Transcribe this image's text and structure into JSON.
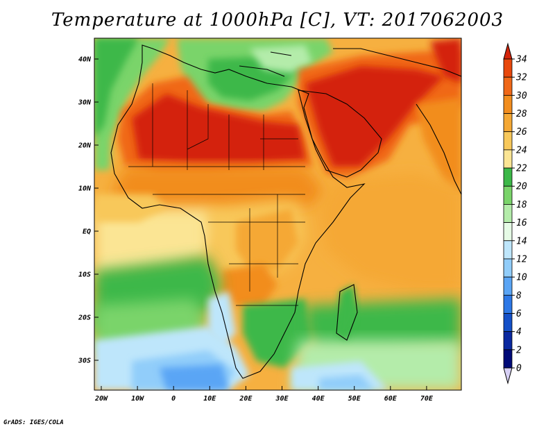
{
  "title": "Temperature at 1000hPa [C], VT: 2017062003",
  "footer": "GrADS: IGES/COLA",
  "map": {
    "lat_labels": [
      "40N",
      "30N",
      "20N",
      "10N",
      "EQ",
      "10S",
      "20S",
      "30S"
    ],
    "lon_labels": [
      "20W",
      "10W",
      "0",
      "10E",
      "20E",
      "30E",
      "40E",
      "50E",
      "60E",
      "70E"
    ]
  },
  "colorbar": {
    "labels": [
      "34",
      "32",
      "30",
      "28",
      "26",
      "24",
      "22",
      "20",
      "18",
      "16",
      "14",
      "12",
      "10",
      "8",
      "6",
      "4",
      "2",
      "0"
    ],
    "colors": [
      "#e8480c",
      "#f06818",
      "#f28d1e",
      "#f5a834",
      "#f8c85a",
      "#fbe594",
      "#3cb848",
      "#7ad46a",
      "#b4ecaa",
      "#e6fbe6",
      "#bee6fb",
      "#91cdfa",
      "#5aa5f5",
      "#2d78e6",
      "#1450c8",
      "#0a28a0",
      "#000a78"
    ],
    "top_color": "#d4240a",
    "bottom_color": "#d7d0f5"
  }
}
